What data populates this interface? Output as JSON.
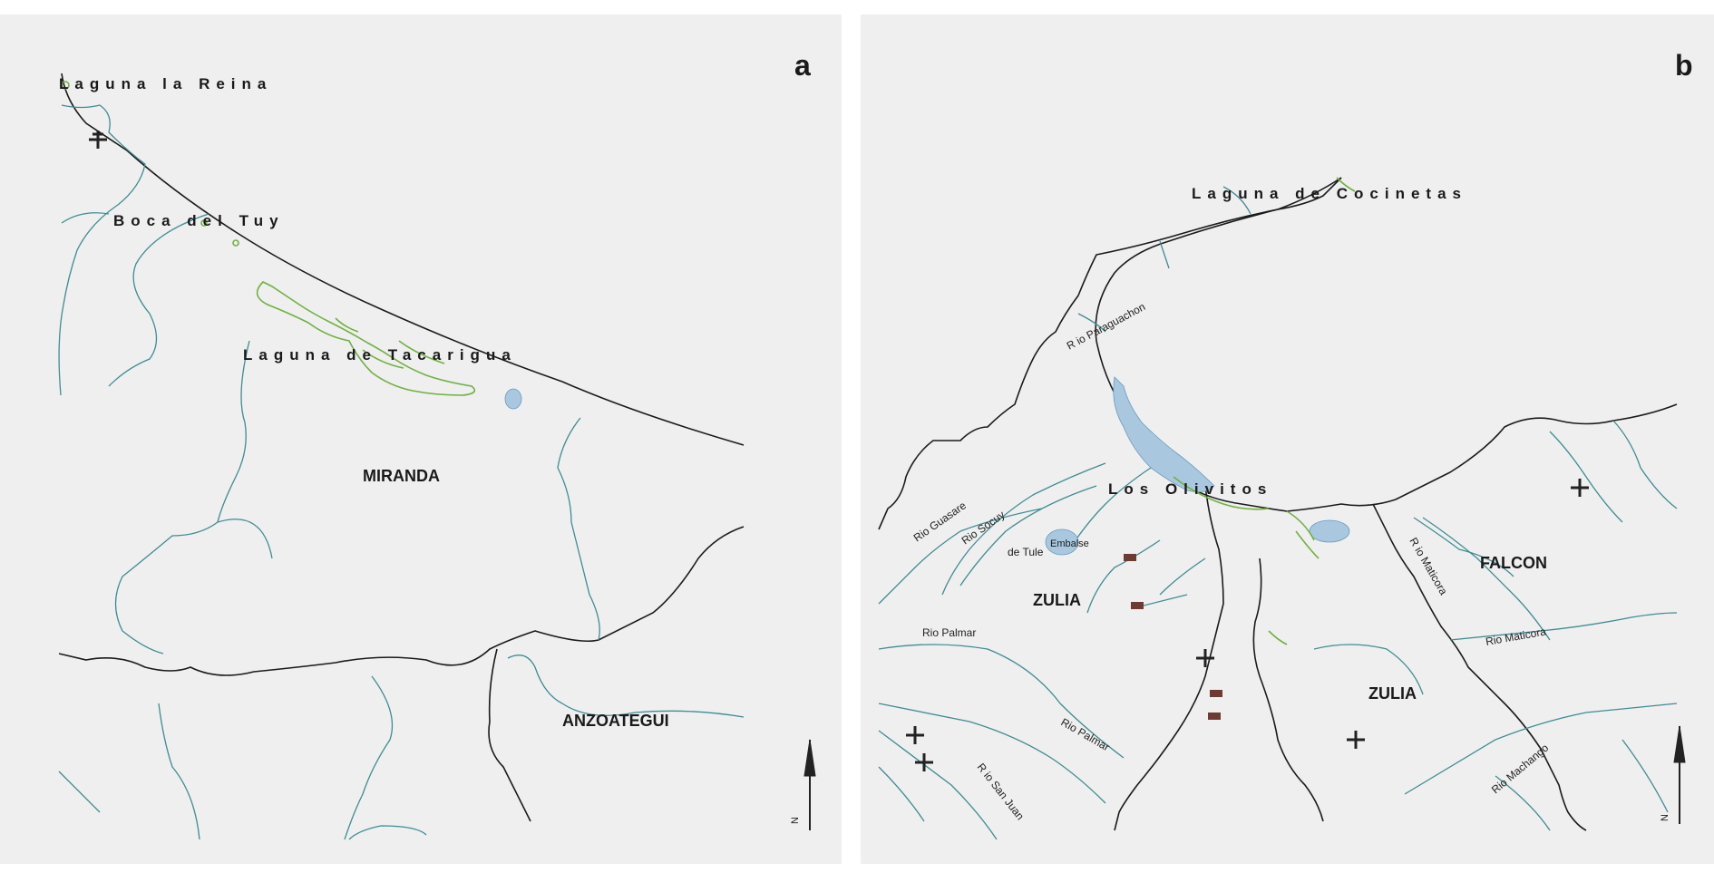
{
  "panel_a": {
    "letter": "a",
    "places": {
      "laguna_la_reina": "Laguna la Reina",
      "boca_del_tuy": "Boca del Tuy",
      "laguna_tacarigua": "Laguna de Tacarigua"
    },
    "states": {
      "miranda": "MIRANDA",
      "anzoategui": "ANZOATEGUI"
    },
    "north": "N"
  },
  "panel_b": {
    "letter": "b",
    "places": {
      "cocinetas": "Laguna de Cocinetas",
      "olivitos": "Los Olivitos",
      "tule_a": "de Tule",
      "tule_b": "Embalse"
    },
    "states": {
      "zulia_west": "ZULIA",
      "zulia_east": "ZULIA",
      "falcon": "FALCON"
    },
    "rivers": {
      "guasare": "Rio Guasare",
      "socuy": "Rio Socuy",
      "palmar_1": "Rio Palmar",
      "palmar_2": "Rio Palmar",
      "san_juan": "R io San Juan",
      "paraguachon": "R io Paraguachon",
      "maticora_1": "R io Maticora",
      "maticora_2": "Rio Maticora",
      "machango": "Rio Machango"
    },
    "north": "N"
  },
  "colors": {
    "coastline": "#1b1b1b",
    "river": "#3f8c94",
    "mangrove": "#6fb23f",
    "water": "#a9c8df",
    "background": "#efefef"
  }
}
